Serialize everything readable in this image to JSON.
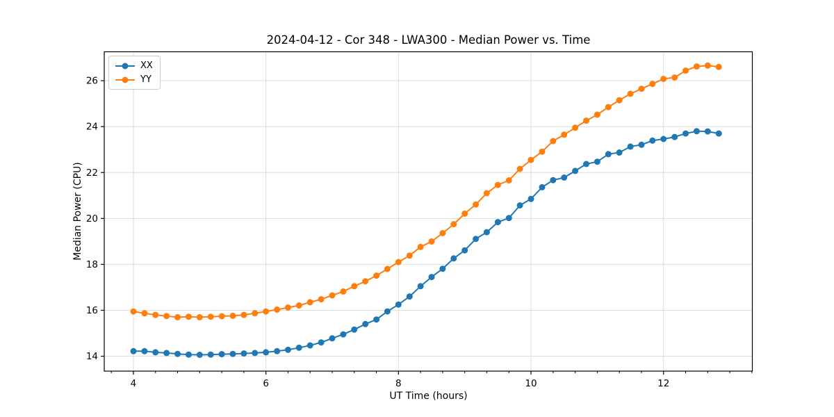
{
  "figure": {
    "title": "2024-04-12 - Cor 348 - LWA300 - Median Power vs. Time",
    "xlabel": "UT Time (hours)",
    "ylabel": "Median Power (CPU)"
  },
  "colors": {
    "series_blue": "#1f77b4",
    "series_orange": "#ff7f0e",
    "grid": "#dcdcdc",
    "spine": "#000000",
    "text": "#000000",
    "legend_border": "#cccccc",
    "background": "#ffffff"
  },
  "chart_data": {
    "type": "line",
    "title": "2024-04-12 - Cor 348 - LWA300 - Median Power vs. Time",
    "xlabel": "UT Time (hours)",
    "ylabel": "Median Power (CPU)",
    "xlim": [
      3.56,
      13.34
    ],
    "ylim": [
      13.35,
      27.26
    ],
    "xticks": [
      4,
      6,
      8,
      10,
      12
    ],
    "yticks": [
      14,
      16,
      18,
      20,
      22,
      24,
      26
    ],
    "x_minor_step": 0.3333333,
    "grid": true,
    "legend_position": "upper-left",
    "marker": "o",
    "x": [
      4.0,
      4.167,
      4.333,
      4.5,
      4.667,
      4.833,
      5.0,
      5.167,
      5.333,
      5.5,
      5.667,
      5.833,
      6.0,
      6.167,
      6.333,
      6.5,
      6.667,
      6.833,
      7.0,
      7.167,
      7.333,
      7.5,
      7.667,
      7.833,
      8.0,
      8.167,
      8.333,
      8.5,
      8.667,
      8.833,
      9.0,
      9.167,
      9.333,
      9.5,
      9.667,
      9.833,
      10.0,
      10.167,
      10.333,
      10.5,
      10.667,
      10.833,
      11.0,
      11.167,
      11.333,
      11.5,
      11.667,
      11.833,
      12.0,
      12.167,
      12.333,
      12.5,
      12.667,
      12.833
    ],
    "series": [
      {
        "name": "XX",
        "color": "#1f77b4",
        "values": [
          14.22,
          14.22,
          14.17,
          14.14,
          14.1,
          14.07,
          14.06,
          14.07,
          14.09,
          14.1,
          14.12,
          14.14,
          14.17,
          14.22,
          14.28,
          14.37,
          14.47,
          14.6,
          14.78,
          14.95,
          15.16,
          15.4,
          15.6,
          15.95,
          16.25,
          16.6,
          17.05,
          17.45,
          17.81,
          18.26,
          18.61,
          19.11,
          19.4,
          19.84,
          20.02,
          20.57,
          20.85,
          21.36,
          21.67,
          21.78,
          22.07,
          22.37,
          22.47,
          22.8,
          22.87,
          23.13,
          23.21,
          23.39,
          23.46,
          23.55,
          23.7,
          23.8,
          23.79,
          23.7
        ]
      },
      {
        "name": "YY",
        "color": "#ff7f0e",
        "values": [
          15.95,
          15.87,
          15.8,
          15.75,
          15.7,
          15.72,
          15.7,
          15.72,
          15.74,
          15.76,
          15.8,
          15.87,
          15.95,
          16.03,
          16.12,
          16.21,
          16.35,
          16.48,
          16.65,
          16.82,
          17.05,
          17.26,
          17.51,
          17.8,
          18.1,
          18.38,
          18.76,
          19.0,
          19.36,
          19.75,
          20.21,
          20.61,
          21.1,
          21.46,
          21.66,
          22.16,
          22.55,
          22.91,
          23.37,
          23.65,
          23.95,
          24.26,
          24.52,
          24.85,
          25.15,
          25.43,
          25.65,
          25.86,
          26.08,
          26.14,
          26.44,
          26.62,
          26.66,
          26.6
        ]
      }
    ]
  }
}
